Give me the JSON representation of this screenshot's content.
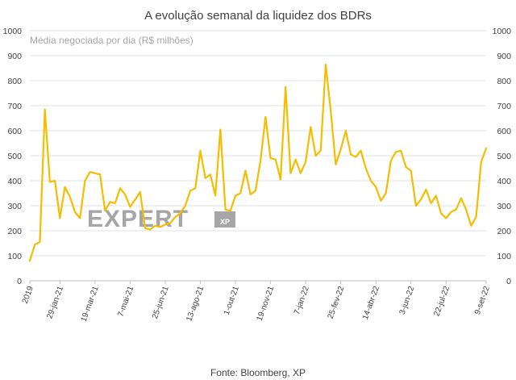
{
  "chart_data": {
    "type": "line",
    "title": "A evolução semanal da liquidez dos BDRs",
    "series": [
      {
        "name": "Média negociada por dia (R$ milhões)",
        "color": "#f5bd00",
        "values": [
          80,
          145,
          155,
          685,
          395,
          400,
          250,
          375,
          335,
          275,
          250,
          400,
          435,
          430,
          425,
          280,
          315,
          310,
          370,
          345,
          295,
          325,
          355,
          210,
          205,
          220,
          215,
          225,
          230,
          255,
          270,
          300,
          360,
          370,
          520,
          410,
          425,
          340,
          605,
          285,
          280,
          340,
          350,
          440,
          345,
          360,
          480,
          655,
          490,
          485,
          405,
          775,
          430,
          485,
          430,
          475,
          615,
          500,
          520,
          865,
          680,
          465,
          525,
          600,
          505,
          495,
          520,
          450,
          400,
          375,
          320,
          350,
          480,
          515,
          520,
          455,
          440,
          300,
          325,
          365,
          310,
          340,
          270,
          250,
          275,
          285,
          330,
          285,
          220,
          255,
          475,
          530
        ]
      }
    ],
    "x_tick_labels": [
      "2019",
      "29-jan-21",
      "19-mar-21",
      "7-mai-21",
      "25-jun-21",
      "13-ago-21",
      "1-out-21",
      "19-nov-21",
      "7-jan-22",
      "25-fev-22",
      "14-abr-22",
      "3-jun-22",
      "22-jul-22",
      "9-set-22"
    ],
    "ylim": [
      0,
      1000
    ],
    "y_ticks": [
      0,
      100,
      200,
      300,
      400,
      500,
      600,
      700,
      800,
      900,
      1000
    ],
    "grid": true,
    "legend_position": "top-left",
    "secondary_y_axis": true
  },
  "watermark": {
    "brand": "EXPERT",
    "sub": "XP"
  },
  "source": "Fonte: Bloomberg, XP"
}
